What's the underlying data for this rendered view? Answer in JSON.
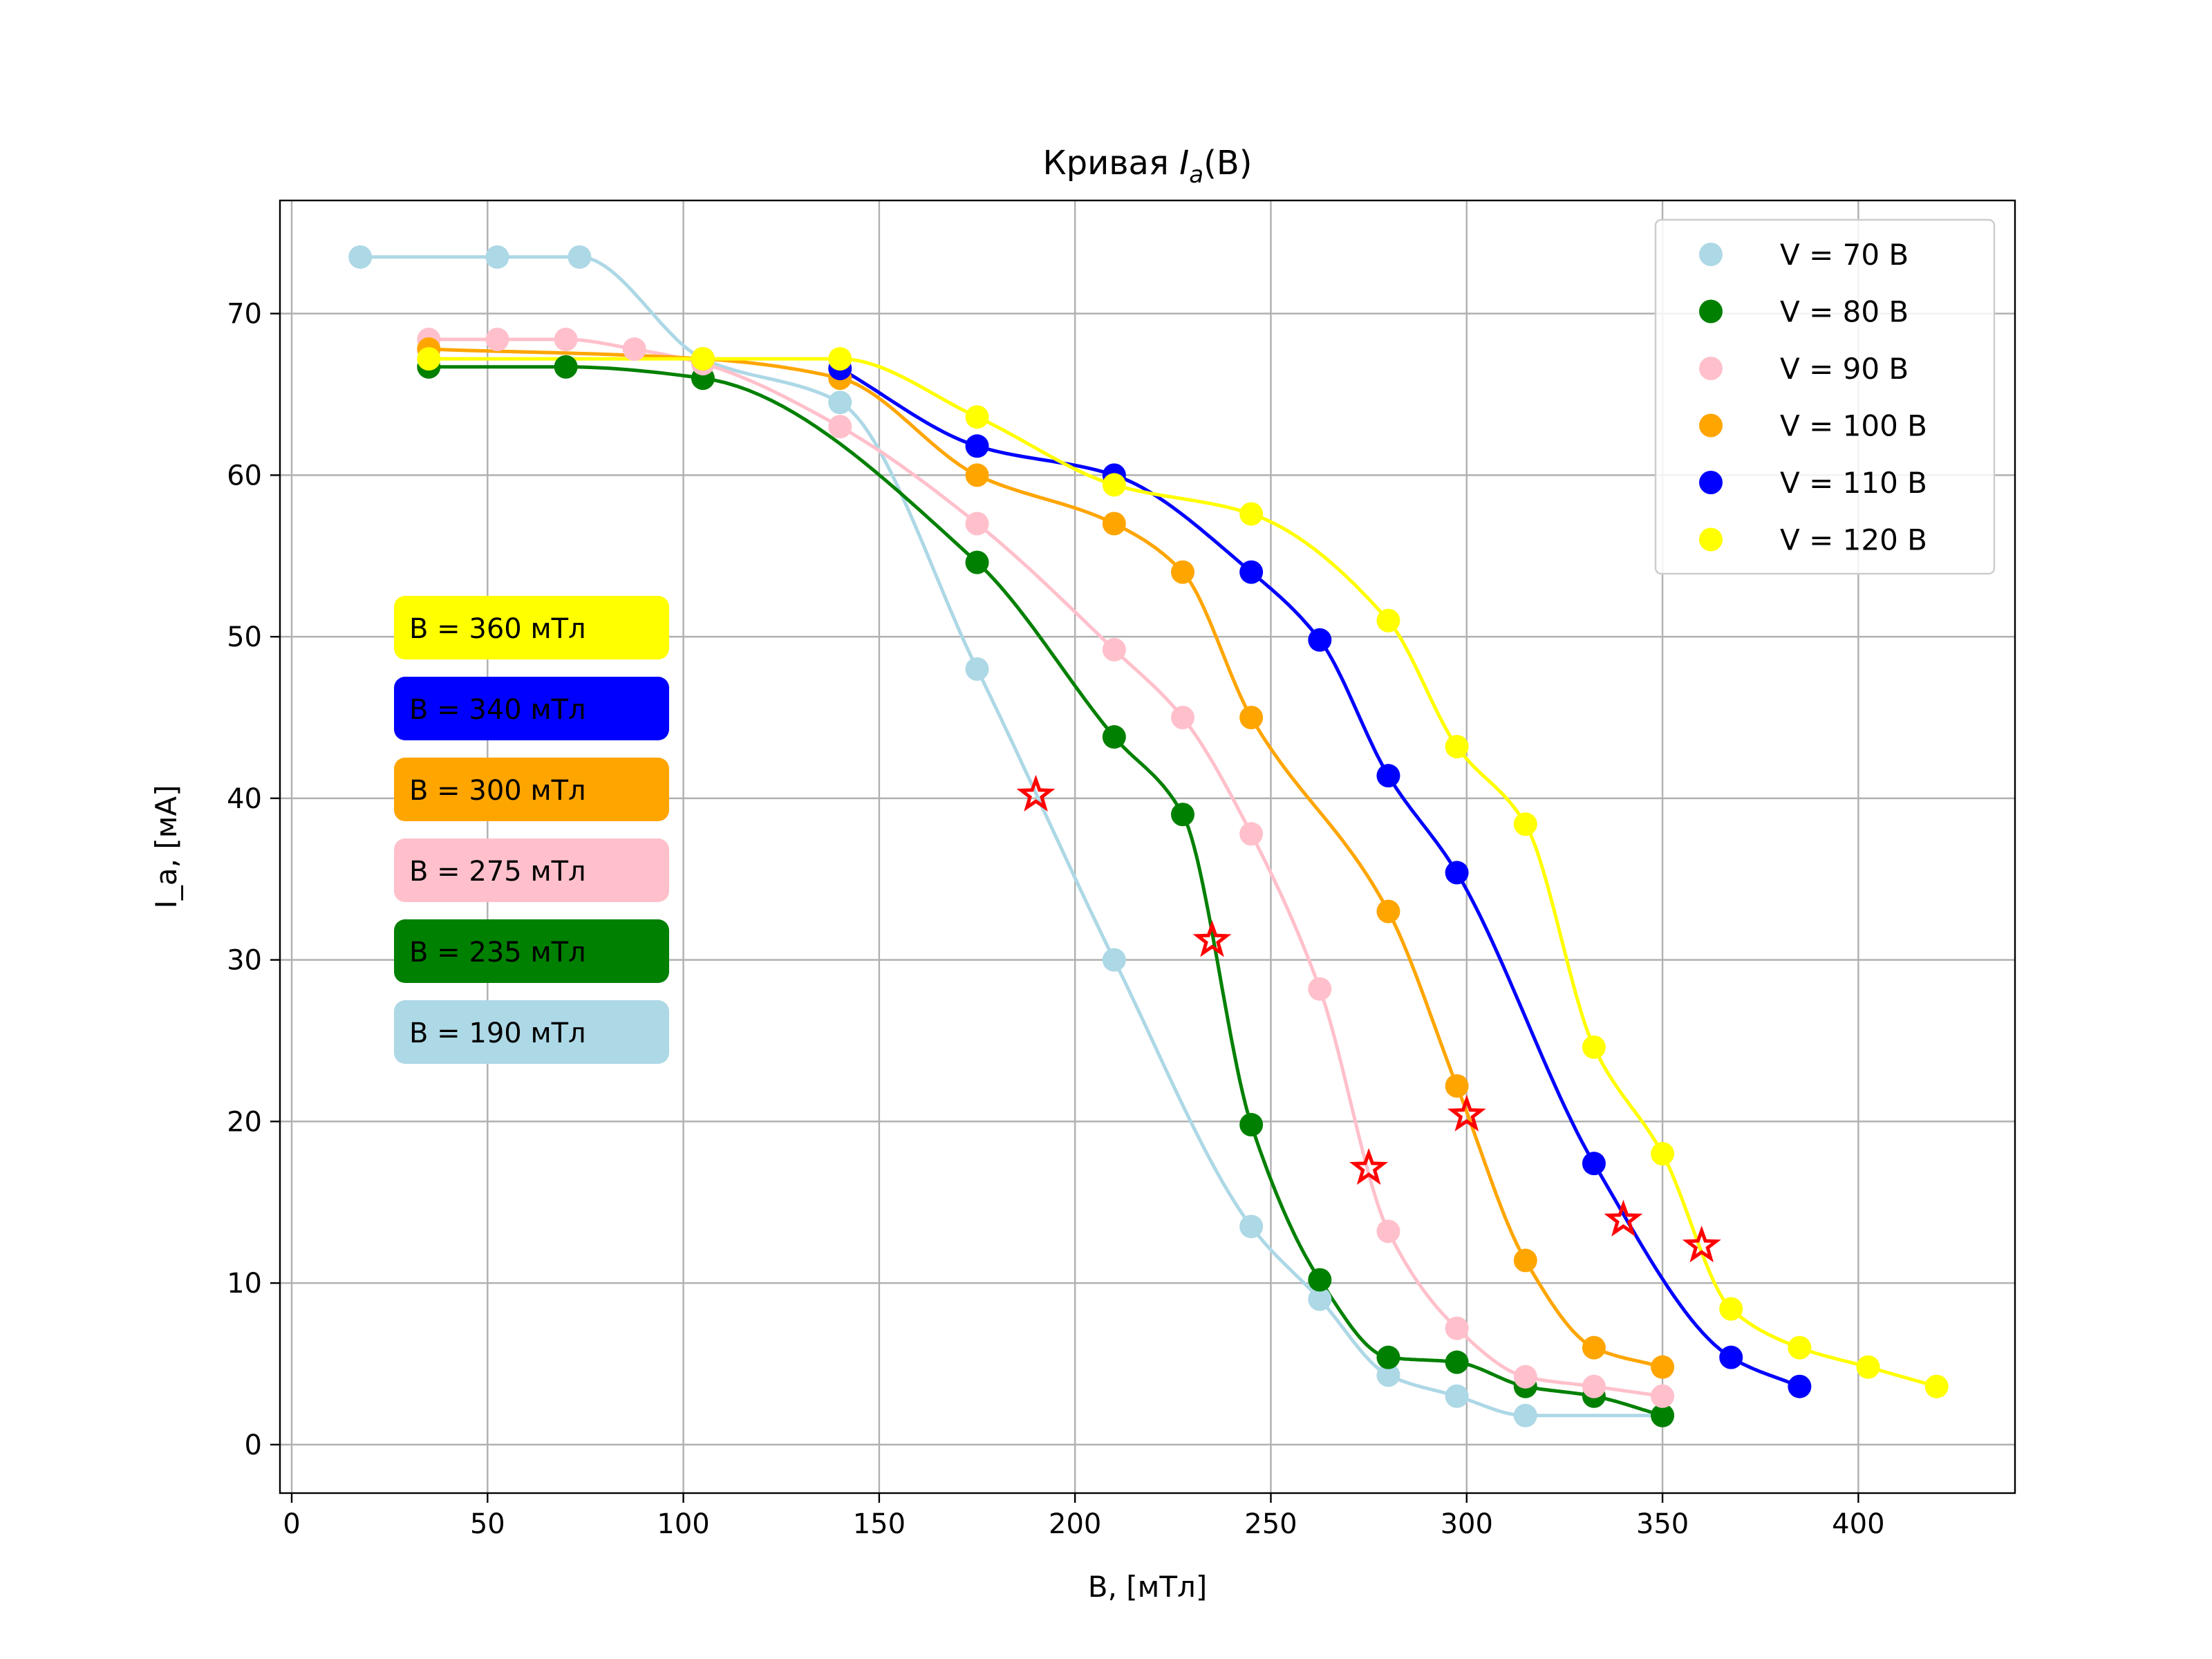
{
  "chart_data": {
    "type": "line",
    "title_prefix": "Кривая ",
    "title_var": "I",
    "title_sub": "a",
    "title_arg": "(B)",
    "xlabel": "B, [мТл]",
    "ylabel": "I_a, [мА]",
    "xlim": [
      -3,
      440
    ],
    "ylim": [
      -3,
      77
    ],
    "xticks": [
      0,
      50,
      100,
      150,
      200,
      250,
      300,
      350,
      400
    ],
    "yticks": [
      0,
      10,
      20,
      30,
      40,
      50,
      60,
      70
    ],
    "grid": true,
    "legend_position": "top-right",
    "series": [
      {
        "name": "V = 70 В",
        "color": "#add8e6",
        "x": [
          17.5,
          52.5,
          73.5,
          105,
          140,
          175,
          210,
          245,
          262.5,
          280,
          297.5,
          315,
          350
        ],
        "y": [
          73.5,
          73.5,
          73.5,
          67.2,
          64.5,
          48.0,
          30.0,
          13.5,
          9.0,
          4.3,
          3.0,
          1.8,
          1.8
        ]
      },
      {
        "name": "V = 80 В",
        "color": "#008000",
        "x": [
          35,
          70,
          105,
          175,
          210,
          227.5,
          245,
          262.5,
          280,
          297.5,
          315,
          332.5,
          350
        ],
        "y": [
          66.7,
          66.7,
          66.0,
          54.6,
          43.8,
          39.0,
          19.8,
          10.2,
          5.4,
          5.1,
          3.6,
          3.0,
          1.8
        ]
      },
      {
        "name": "V = 90 В",
        "color": "#ffc0cb",
        "x": [
          35,
          52.5,
          70,
          87.5,
          105,
          140,
          175,
          210,
          227.5,
          245,
          262.5,
          280,
          297.5,
          315,
          332.5,
          350
        ],
        "y": [
          68.4,
          68.4,
          68.4,
          67.8,
          66.9,
          63.0,
          57.0,
          49.2,
          45.0,
          37.8,
          28.2,
          13.2,
          7.2,
          4.2,
          3.6,
          3.0
        ]
      },
      {
        "name": "V = 100 В",
        "color": "#ffa500",
        "x": [
          35,
          105,
          140,
          175,
          210,
          227.5,
          245,
          280,
          297.5,
          315,
          332.5,
          350
        ],
        "y": [
          67.8,
          67.2,
          66.0,
          60.0,
          57.0,
          54.0,
          45.0,
          33.0,
          22.2,
          11.4,
          6.0,
          4.8
        ]
      },
      {
        "name": "V = 110 В",
        "color": "#0000ff",
        "x": [
          140,
          175,
          210,
          245,
          262.5,
          280,
          297.5,
          332.5,
          367.5,
          385
        ],
        "y": [
          66.6,
          61.8,
          60.0,
          54.0,
          49.8,
          41.4,
          35.4,
          17.4,
          5.4,
          3.6
        ]
      },
      {
        "name": "V = 120 В",
        "color": "#ffff00",
        "x": [
          35,
          105,
          140,
          175,
          210,
          245,
          280,
          297.5,
          315,
          332.5,
          350,
          367.5,
          385,
          402.5,
          420
        ],
        "y": [
          67.2,
          67.2,
          67.2,
          63.6,
          59.4,
          57.6,
          51.0,
          43.2,
          38.4,
          24.6,
          18.0,
          8.4,
          6.0,
          4.8,
          3.6
        ]
      }
    ],
    "stars": {
      "color": "#ff0000",
      "x": [
        190,
        235,
        275,
        300,
        340,
        360
      ],
      "y": [
        40.2,
        31.2,
        17.1,
        20.4,
        13.9,
        12.3
      ]
    },
    "annotations": [
      {
        "text": "B = 360 мТл",
        "color": "#ffff00"
      },
      {
        "text": "B = 340 мТл",
        "color": "#0000ff"
      },
      {
        "text": "B = 300 мТл",
        "color": "#ffa500"
      },
      {
        "text": "B = 275 мТл",
        "color": "#ffc0cb"
      },
      {
        "text": "B = 235 мТл",
        "color": "#008000"
      },
      {
        "text": "B = 190 мТл",
        "color": "#add8e6"
      }
    ]
  }
}
